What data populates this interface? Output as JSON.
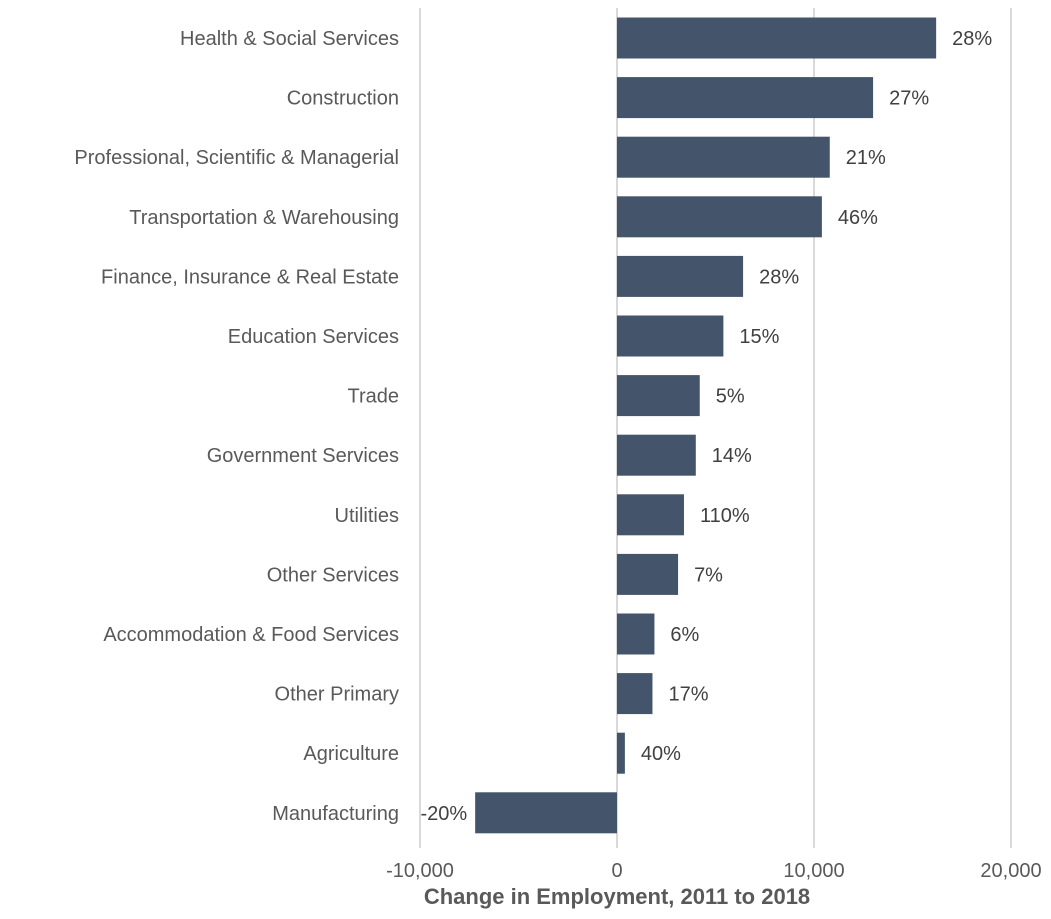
{
  "chart_data": {
    "type": "bar",
    "orientation": "horizontal",
    "xlabel": "Change in Employment, 2011 to 2018",
    "ylabel": "",
    "xlim": [
      -10000,
      20000
    ],
    "xticks": [
      -10000,
      0,
      10000,
      20000
    ],
    "xtick_labels": [
      "-10,000",
      "0",
      "10,000",
      "20,000"
    ],
    "grid": "vertical",
    "legend": "none",
    "bar_color": "#44546a",
    "categories": [
      "Health & Social Services",
      "Construction",
      "Professional, Scientific & Managerial",
      "Transportation & Warehousing",
      "Finance, Insurance & Real Estate",
      "Education Services",
      "Trade",
      "Government Services",
      "Utilities",
      "Other Services",
      "Accommodation & Food Services",
      "Other Primary",
      "Agriculture",
      "Manufacturing"
    ],
    "values": [
      16200,
      13000,
      10800,
      10400,
      6400,
      5400,
      4200,
      4000,
      3400,
      3100,
      1900,
      1800,
      400,
      -7200
    ],
    "data_labels": [
      "28%",
      "27%",
      "21%",
      "46%",
      "28%",
      "15%",
      "5%",
      "14%",
      "110%",
      "7%",
      "6%",
      "17%",
      "40%",
      "-20%"
    ]
  }
}
